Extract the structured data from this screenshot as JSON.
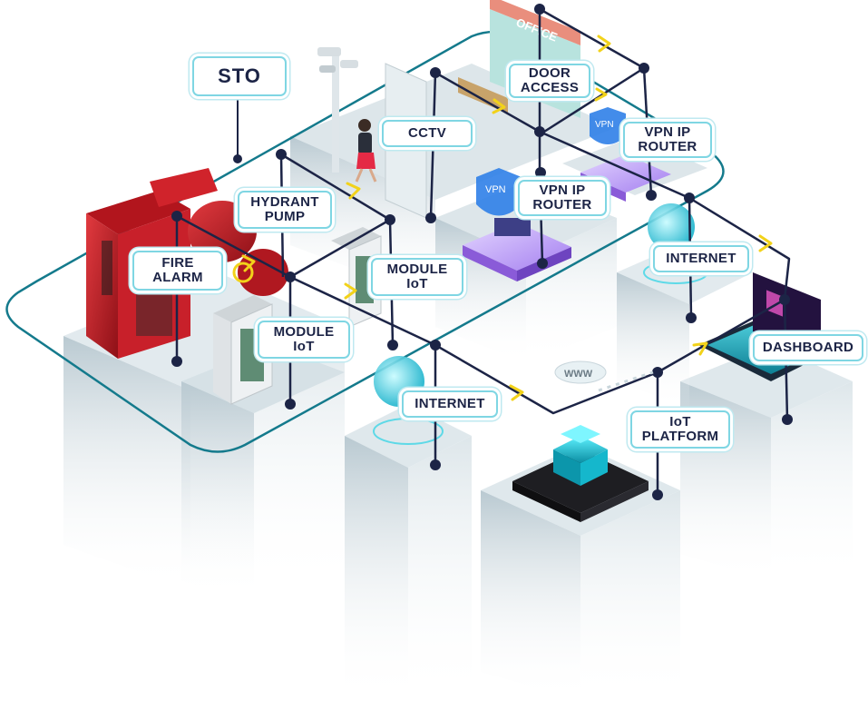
{
  "labels": {
    "sto": "STO",
    "door_access": [
      "DOOR",
      "ACCESS"
    ],
    "cctv": "CCTV",
    "vpn_router_right": [
      "VPN IP",
      "ROUTER"
    ],
    "vpn_router_center": [
      "VPN IP",
      "ROUTER"
    ],
    "hydrant_pump": [
      "HYDRANT",
      "PUMP"
    ],
    "fire_alarm": [
      "FIRE",
      "ALARM"
    ],
    "module_iot_right": [
      "MODULE",
      "IoT"
    ],
    "module_iot_left": [
      "MODULE",
      "IoT"
    ],
    "internet_right": "INTERNET",
    "internet_center": "INTERNET",
    "dashboard": "DASHBOARD",
    "iot_platform": [
      "IoT",
      "PLATFORM"
    ]
  },
  "signage": {
    "office_sign": "OFFICE",
    "vpn_badge": "VPN",
    "www_badge": "WWW"
  },
  "colors": {
    "line": "#1c2446",
    "node": "#1c2446",
    "arrow": "#f2d21a",
    "loop": "#147a8c",
    "label_border": "#7fd6e3",
    "pillar": "#c9d6dc",
    "fire_red": "#c8202a",
    "vpn_purple": "#8a5bd8",
    "cyan_glow": "#27d3e6"
  }
}
